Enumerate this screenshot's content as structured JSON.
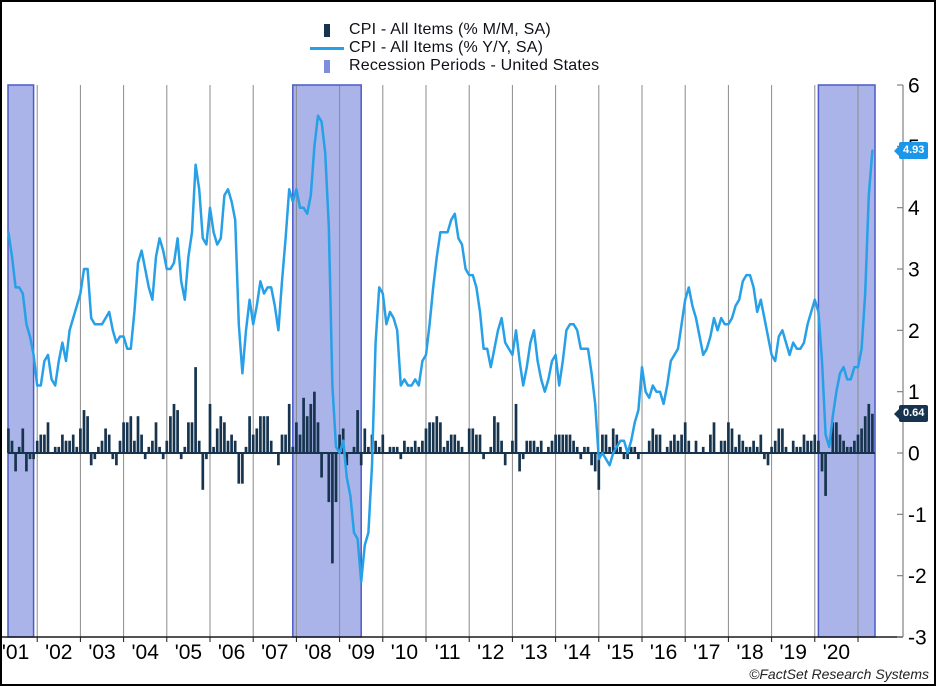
{
  "legend": {
    "items": [
      {
        "label": "CPI - All Items (% M/M, SA)",
        "marker": "bar",
        "color": "#17344F"
      },
      {
        "label": "CPI - All Items (% Y/Y, SA)",
        "marker": "line",
        "color": "#27A0E8"
      },
      {
        "label": "Recession Periods - United States",
        "marker": "band",
        "color": "#7F8EDC"
      }
    ]
  },
  "footer": {
    "copyright": "©FactSet Research Systems"
  },
  "chart_data": {
    "type": "mixed",
    "frequency": "monthly",
    "x_start": "2001-05",
    "x_end": "2021-05",
    "title": "",
    "xlabel": "",
    "ylabel": "",
    "ylim": [
      -3,
      6
    ],
    "y_ticks": [
      6,
      5,
      4,
      3,
      2,
      1,
      0,
      -1,
      -2,
      -3
    ],
    "x_tick_labels": [
      "'01",
      "'02",
      "'03",
      "'04",
      "'05",
      "'06",
      "'07",
      "'08",
      "'09",
      "'10",
      "'11",
      "'12",
      "'13",
      "'14",
      "'15",
      "'16",
      "'17",
      "'18",
      "'19",
      "'20"
    ],
    "grid": "vertical-yearly",
    "legend_position": "top-center",
    "axis_colors": {
      "gridline": "#8A8A8A",
      "bottom_axis": "#1A1A1A",
      "right_axis": "#808080",
      "tick_label": "#000000"
    },
    "series": [
      {
        "name": "CPI - All Items (% M/M, SA)",
        "type": "bar",
        "color": "#17344F",
        "badge_color": "#17344F",
        "last_value_label": "0.64",
        "values": [
          0.4,
          0.2,
          -0.3,
          0.1,
          0.4,
          -0.3,
          -0.1,
          -0.1,
          0.2,
          0.3,
          0.3,
          0.5,
          0.0,
          0.1,
          0.1,
          0.3,
          0.2,
          0.2,
          0.3,
          0.1,
          0.4,
          0.7,
          0.6,
          -0.2,
          -0.1,
          0.1,
          0.2,
          0.4,
          0.3,
          -0.1,
          -0.2,
          0.2,
          0.5,
          0.5,
          0.6,
          0.2,
          0.6,
          0.3,
          -0.1,
          0.1,
          0.2,
          0.5,
          0.1,
          -0.1,
          0.2,
          0.6,
          0.8,
          0.7,
          -0.1,
          0.1,
          0.5,
          0.5,
          1.4,
          0.2,
          -0.6,
          -0.1,
          0.8,
          0.1,
          0.4,
          0.6,
          0.5,
          0.2,
          0.3,
          0.2,
          -0.5,
          -0.5,
          0.1,
          0.6,
          0.3,
          0.4,
          0.6,
          0.6,
          0.6,
          0.2,
          0.0,
          -0.2,
          0.3,
          0.3,
          0.8,
          0.1,
          0.5,
          0.3,
          0.9,
          0.6,
          0.8,
          1.0,
          0.5,
          -0.4,
          0.0,
          -0.8,
          -1.8,
          -0.8,
          0.3,
          0.4,
          -0.2,
          0.0,
          0.1,
          0.7,
          -0.2,
          0.4,
          0.1,
          0.3,
          0.2,
          0.1,
          0.3,
          0.0,
          0.1,
          0.1,
          0.1,
          -0.1,
          0.2,
          0.1,
          0.1,
          0.2,
          0.1,
          0.2,
          0.4,
          0.5,
          0.5,
          0.6,
          0.5,
          0.1,
          0.2,
          0.3,
          0.3,
          0.2,
          0.1,
          0.0,
          0.4,
          0.4,
          0.3,
          0.3,
          -0.1,
          0.0,
          0.1,
          0.6,
          0.5,
          0.2,
          -0.2,
          0.0,
          0.2,
          0.8,
          -0.3,
          -0.1,
          0.2,
          0.2,
          0.2,
          0.1,
          0.2,
          0.0,
          0.1,
          0.2,
          0.3,
          0.3,
          0.3,
          0.3,
          0.3,
          0.2,
          0.1,
          -0.1,
          0.1,
          0.1,
          -0.2,
          -0.3,
          -0.6,
          0.3,
          0.3,
          0.1,
          0.4,
          0.3,
          0.1,
          -0.1,
          -0.1,
          0.1,
          0.1,
          -0.1,
          0.0,
          0.0,
          0.2,
          0.4,
          0.3,
          0.3,
          0.0,
          0.1,
          0.2,
          0.3,
          0.2,
          0.3,
          0.5,
          0.2,
          0.0,
          0.2,
          0.0,
          0.1,
          0.0,
          0.3,
          0.5,
          0.0,
          0.2,
          0.2,
          0.5,
          0.4,
          0.1,
          0.3,
          0.2,
          0.1,
          0.1,
          0.2,
          0.1,
          0.3,
          -0.1,
          -0.2,
          0.1,
          0.2,
          0.4,
          0.4,
          0.1,
          0.0,
          0.2,
          0.1,
          0.1,
          0.3,
          0.2,
          0.2,
          0.3,
          0.2,
          -0.3,
          -0.7,
          0.0,
          0.5,
          0.5,
          0.3,
          0.2,
          0.1,
          0.1,
          0.2,
          0.3,
          0.4,
          0.6,
          0.8,
          0.64
        ]
      },
      {
        "name": "CPI - All Items (% Y/Y, SA)",
        "type": "line",
        "color": "#27A0E8",
        "badge_color": "#1B96E8",
        "last_value_label": "4.93",
        "values": [
          3.6,
          3.2,
          2.7,
          2.7,
          2.6,
          2.1,
          1.9,
          1.6,
          1.1,
          1.1,
          1.5,
          1.6,
          1.2,
          1.1,
          1.5,
          1.8,
          1.5,
          2.0,
          2.2,
          2.4,
          2.6,
          3.0,
          3.0,
          2.2,
          2.1,
          2.1,
          2.1,
          2.2,
          2.3,
          2.0,
          1.8,
          1.9,
          1.9,
          1.7,
          1.7,
          2.3,
          3.1,
          3.3,
          3.0,
          2.7,
          2.5,
          3.2,
          3.5,
          3.3,
          3.0,
          3.0,
          3.1,
          3.5,
          2.8,
          2.5,
          3.2,
          3.6,
          4.7,
          4.3,
          3.5,
          3.4,
          4.0,
          3.6,
          3.4,
          3.5,
          4.2,
          4.3,
          4.1,
          3.8,
          2.1,
          1.3,
          2.0,
          2.5,
          2.1,
          2.4,
          2.8,
          2.6,
          2.7,
          2.7,
          2.4,
          2.0,
          2.8,
          3.5,
          4.3,
          4.1,
          4.3,
          4.0,
          4.0,
          3.9,
          4.2,
          5.0,
          5.5,
          5.4,
          4.9,
          3.7,
          1.1,
          0.1,
          0.0,
          0.2,
          -0.4,
          -0.7,
          -1.3,
          -1.4,
          -2.1,
          -1.5,
          -1.3,
          -0.2,
          1.8,
          2.7,
          2.6,
          2.1,
          2.3,
          2.2,
          2.0,
          1.1,
          1.2,
          1.1,
          1.1,
          1.2,
          1.1,
          1.5,
          1.6,
          2.1,
          2.7,
          3.2,
          3.6,
          3.6,
          3.6,
          3.8,
          3.9,
          3.5,
          3.4,
          3.0,
          2.9,
          2.9,
          2.7,
          2.3,
          1.7,
          1.7,
          1.4,
          1.7,
          2.0,
          2.2,
          1.8,
          1.7,
          1.6,
          2.0,
          1.5,
          1.1,
          1.4,
          1.8,
          2.0,
          1.5,
          1.2,
          1.0,
          1.2,
          1.5,
          1.6,
          1.1,
          1.5,
          2.0,
          2.1,
          2.1,
          2.0,
          1.7,
          1.7,
          1.7,
          1.3,
          0.8,
          -0.1,
          0.0,
          -0.1,
          -0.2,
          0.0,
          0.1,
          0.2,
          0.2,
          0.0,
          0.2,
          0.5,
          0.7,
          1.4,
          1.0,
          0.9,
          1.1,
          1.0,
          1.0,
          0.8,
          1.1,
          1.5,
          1.6,
          1.7,
          2.1,
          2.5,
          2.7,
          2.4,
          2.2,
          1.9,
          1.6,
          1.7,
          1.9,
          2.2,
          2.0,
          2.2,
          2.1,
          2.1,
          2.2,
          2.4,
          2.5,
          2.8,
          2.9,
          2.9,
          2.7,
          2.3,
          2.5,
          2.2,
          1.9,
          1.6,
          1.5,
          1.9,
          2.0,
          1.8,
          1.6,
          1.8,
          1.7,
          1.7,
          1.8,
          2.1,
          2.3,
          2.5,
          2.3,
          1.5,
          0.3,
          0.1,
          0.6,
          1.0,
          1.3,
          1.4,
          1.2,
          1.2,
          1.4,
          1.4,
          1.7,
          2.6,
          4.2,
          4.93
        ]
      }
    ],
    "recessions": {
      "name": "Recession Periods - United States",
      "fill": "#AAB4E8",
      "border": "#4A5AC8",
      "periods": [
        {
          "start": "2001-04",
          "end": "2001-11"
        },
        {
          "start": "2007-12",
          "end": "2009-06"
        },
        {
          "start": "2020-02",
          "end": "2021-05"
        }
      ]
    }
  }
}
